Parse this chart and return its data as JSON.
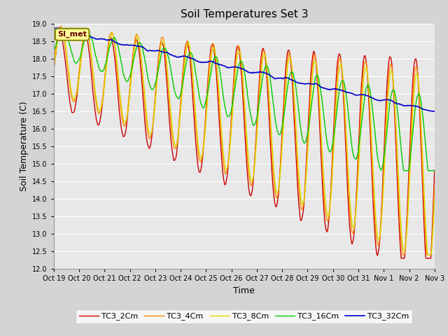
{
  "title": "Soil Temperatures Set 3",
  "xlabel": "Time",
  "ylabel": "Soil Temperature (C)",
  "ylim": [
    12.0,
    19.0
  ],
  "yticks": [
    12.0,
    12.5,
    13.0,
    13.5,
    14.0,
    14.5,
    15.0,
    15.5,
    16.0,
    16.5,
    17.0,
    17.5,
    18.0,
    18.5,
    19.0
  ],
  "xtick_labels": [
    "Oct 19",
    "Oct 20",
    "Oct 21",
    "Oct 22",
    "Oct 23",
    "Oct 24",
    "Oct 25",
    "Oct 26",
    "Oct 27",
    "Oct 28",
    "Oct 29",
    "Oct 30",
    "Oct 31",
    "Nov 1",
    "Nov 2",
    "Nov 3"
  ],
  "fig_bg_color": "#d4d4d4",
  "plot_bg_color": "#e8e8e8",
  "title_fontsize": 11,
  "legend_entries": [
    "TC3_2Cm",
    "TC3_4Cm",
    "TC3_8Cm",
    "TC3_16Cm",
    "TC3_32Cm"
  ],
  "line_colors": [
    "#cc0000",
    "#ff8800",
    "#dddd00",
    "#00cc00",
    "#0000cc"
  ],
  "line_widths": [
    1.0,
    1.0,
    1.0,
    1.0,
    1.2
  ],
  "annotation_text": "SI_met",
  "annotation_bg": "#ffff99",
  "annotation_border": "#888800"
}
